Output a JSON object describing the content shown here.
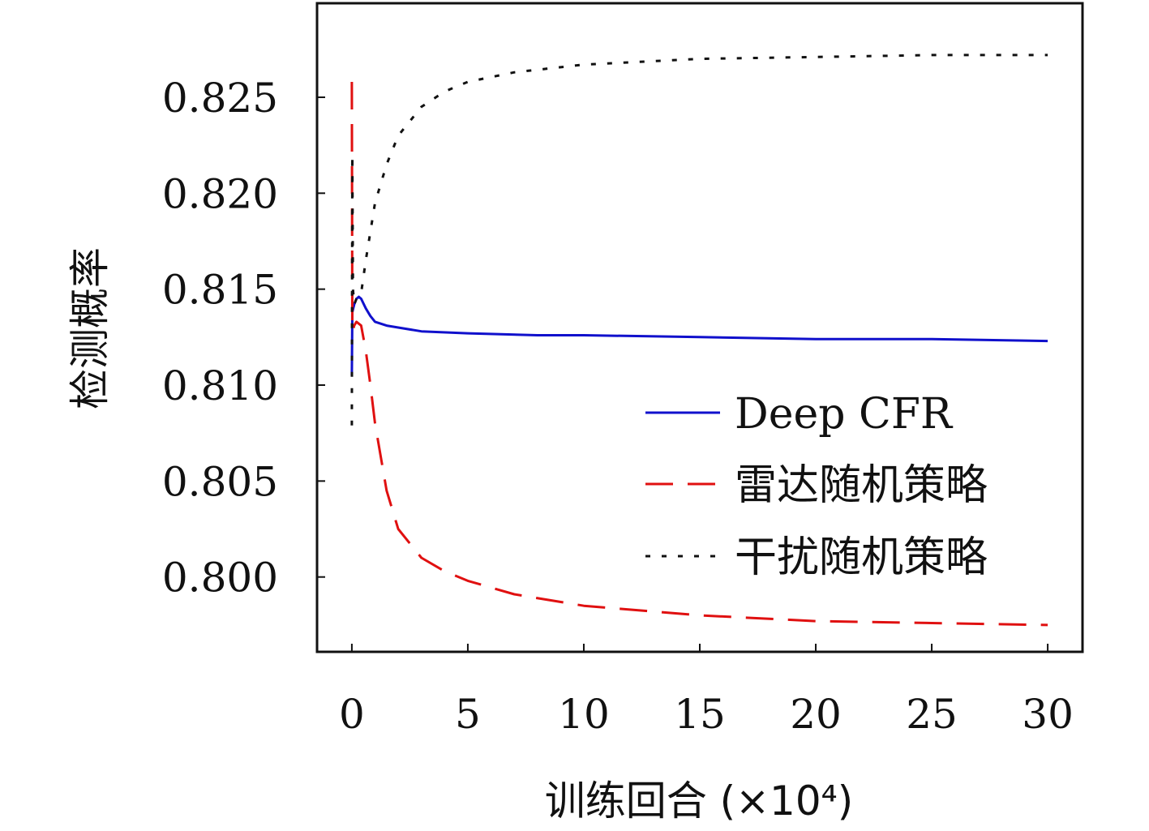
{
  "chart_data": {
    "type": "line",
    "xlabel": "训练回合 (×10⁴)",
    "ylabel": "检测概率",
    "xlim": [
      -1.5,
      31.5
    ],
    "ylim": [
      0.7961,
      0.8299
    ],
    "xticks": [
      0,
      5,
      10,
      15,
      20,
      25,
      30
    ],
    "xtick_labels": [
      "0",
      "5",
      "10",
      "15",
      "20",
      "25",
      "30"
    ],
    "yticks": [
      0.8,
      0.805,
      0.81,
      0.815,
      0.82,
      0.825
    ],
    "ytick_labels": [
      "0.800",
      "0.805",
      "0.810",
      "0.815",
      "0.820",
      "0.825"
    ],
    "grid": false,
    "legend_position": "right",
    "series": [
      {
        "name": "Deep CFR",
        "color": "#1010cc",
        "dash": "solid",
        "x": [
          0,
          0.02,
          0.1,
          0.2,
          0.3,
          0.4,
          0.6,
          0.8,
          1.0,
          1.5,
          2,
          3,
          5,
          8,
          10,
          15,
          20,
          25,
          30
        ],
        "y": [
          0.8105,
          0.8138,
          0.8142,
          0.8145,
          0.8146,
          0.8145,
          0.814,
          0.8136,
          0.8133,
          0.8131,
          0.813,
          0.8128,
          0.8127,
          0.8126,
          0.8126,
          0.8125,
          0.8124,
          0.8124,
          0.8123
        ]
      },
      {
        "name": "雷达随机策略",
        "color": "#e01010",
        "dash": "dashed",
        "x": [
          0,
          0.02,
          0.05,
          0.1,
          0.2,
          0.4,
          0.6,
          0.8,
          1.0,
          1.5,
          2,
          3,
          4,
          5,
          7,
          10,
          15,
          20,
          25,
          30
        ],
        "y": [
          0.8258,
          0.813,
          0.8128,
          0.8131,
          0.8133,
          0.8131,
          0.8118,
          0.81,
          0.808,
          0.8045,
          0.8025,
          0.801,
          0.8003,
          0.7998,
          0.7991,
          0.7985,
          0.798,
          0.7977,
          0.7976,
          0.7975
        ]
      },
      {
        "name": "干扰随机策略",
        "color": "#111111",
        "dash": "dotted",
        "x": [
          0,
          0.02,
          0.05,
          0.1,
          0.2,
          0.4,
          0.6,
          0.8,
          1.0,
          1.5,
          2,
          3,
          4,
          5,
          7,
          10,
          15,
          20,
          25,
          30
        ],
        "y": [
          0.8079,
          0.822,
          0.815,
          0.8142,
          0.8145,
          0.8148,
          0.8165,
          0.818,
          0.8195,
          0.8215,
          0.823,
          0.8245,
          0.8253,
          0.8258,
          0.8263,
          0.8267,
          0.827,
          0.8271,
          0.8272,
          0.8272
        ]
      }
    ]
  }
}
